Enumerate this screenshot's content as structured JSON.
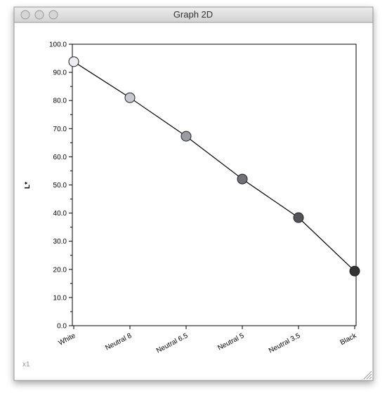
{
  "window": {
    "title": "Graph 2D",
    "corner_label": "x1"
  },
  "chart_data": {
    "type": "line",
    "y_label": "L*",
    "categories": [
      "White",
      "Neutral 8",
      "Neutral 6.5",
      "Neutral 5",
      "Neutral 3.5",
      "Black"
    ],
    "series": [
      {
        "color": "#000000",
        "values": [
          93.8,
          81.0,
          67.3,
          52.1,
          38.4,
          19.4
        ],
        "point_colors": [
          "#eeeef2",
          "#c8c9d0",
          "#9b9ca3",
          "#717177",
          "#545458",
          "#333335"
        ]
      }
    ],
    "ylim": [
      0,
      100
    ],
    "yticks": [
      {
        "value": 0,
        "label": "0.0"
      },
      {
        "value": 10,
        "label": "10.0"
      },
      {
        "value": 20,
        "label": "20.0"
      },
      {
        "value": 30,
        "label": "30.0"
      },
      {
        "value": 40,
        "label": "40.0"
      },
      {
        "value": 50,
        "label": "50.0"
      },
      {
        "value": 60,
        "label": "60.0"
      },
      {
        "value": 70,
        "label": "70.0"
      },
      {
        "value": 80,
        "label": "80.0"
      },
      {
        "value": 90,
        "label": "90.0"
      },
      {
        "value": 100,
        "label": "100.0"
      }
    ]
  }
}
